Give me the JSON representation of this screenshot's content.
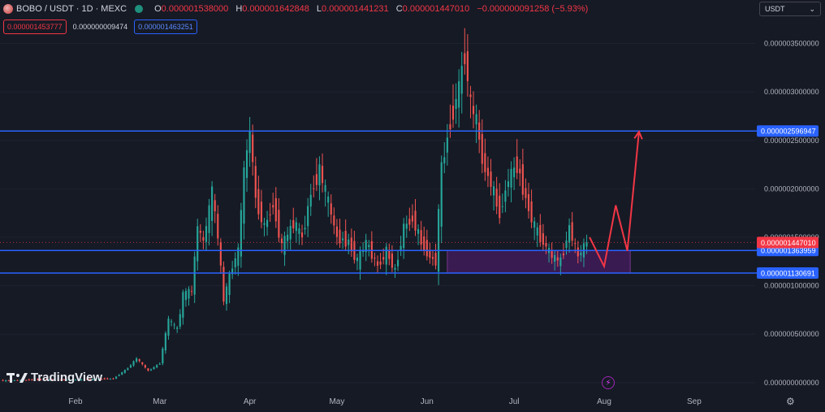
{
  "header": {
    "symbol": "BOBO / USDT · 1D · MEXC",
    "ohlc": [
      {
        "key": "O",
        "value": "0.000001538000"
      },
      {
        "key": "H",
        "value": "0.000001642848"
      },
      {
        "key": "L",
        "value": "0.000001441231"
      },
      {
        "key": "C",
        "value": "0.000001447010"
      },
      {
        "key": "",
        "value": "−0.000000091258 (−5.93%)"
      }
    ],
    "bid": "0.000001453777",
    "spread": "0.000000009474",
    "ask": "0.000001463251",
    "currency": "USDT"
  },
  "branding": {
    "logo_text": "TradingView",
    "logo_icon": "tradingview-logo-icon"
  },
  "colors": {
    "background": "#161a25",
    "up": "#26a69a",
    "down": "#ef5350",
    "level_line": "#2962ff",
    "price_label": "#f23645",
    "zone_fill": "#7b1fa2",
    "arrow": "#f23645"
  },
  "chart_data": {
    "type": "candlestick",
    "x_labels": [
      "Feb",
      "Mar",
      "Apr",
      "May",
      "Jun",
      "Jul",
      "Aug",
      "Sep"
    ],
    "y_ticks": [
      {
        "label": "0.000003500000",
        "value": 3.5
      },
      {
        "label": "0.000003000000",
        "value": 3.0
      },
      {
        "label": "0.000002500000",
        "value": 2.5
      },
      {
        "label": "0.000002000000",
        "value": 2.0
      },
      {
        "label": "0.000001500000",
        "value": 1.5
      },
      {
        "label": "0.000001000000",
        "value": 1.0
      },
      {
        "label": "0.000000500000",
        "value": 0.5
      },
      {
        "label": "0.000000000000",
        "value": 0.0
      }
    ],
    "y_unit_note": "values in units of 1e-6 USDT",
    "ylim": [
      -0.06,
      3.58
    ],
    "x_range": [
      "2024-01-06",
      "2024-09-22"
    ],
    "horizontal_levels": [
      {
        "label": "0.000002596947",
        "value": 2.596947,
        "color": "#2962ff"
      },
      {
        "label": "0.000001363959",
        "value": 1.363959,
        "color": "#2962ff"
      },
      {
        "label": "0.000001130691",
        "value": 1.130691,
        "color": "#2962ff"
      }
    ],
    "current_price": {
      "label": "0.000001447010",
      "value": 1.44701,
      "color": "#f23645"
    },
    "zone": {
      "from": "2024-06-08",
      "to": "2024-08-10",
      "low": 1.130691,
      "high": 1.363959
    },
    "projection_path": [
      {
        "date": "2024-07-27",
        "value": 1.5
      },
      {
        "date": "2024-08-01",
        "value": 1.2
      },
      {
        "date": "2024-08-05",
        "value": 1.83
      },
      {
        "date": "2024-08-09",
        "value": 1.36
      },
      {
        "date": "2024-08-13",
        "value": 2.59
      }
    ],
    "candles": [
      {
        "date": "2024-01-06",
        "close": 0.02
      },
      {
        "date": "2024-01-20",
        "close": 0.03
      },
      {
        "date": "2024-02-01",
        "close": 0.03
      },
      {
        "date": "2024-02-14",
        "close": 0.04
      },
      {
        "date": "2024-02-19",
        "close": 0.15
      },
      {
        "date": "2024-02-22",
        "close": 0.25
      },
      {
        "date": "2024-02-26",
        "close": 0.12
      },
      {
        "date": "2024-03-01",
        "close": 0.2
      },
      {
        "date": "2024-03-04",
        "close": 0.65
      },
      {
        "date": "2024-03-07",
        "close": 0.55
      },
      {
        "date": "2024-03-09",
        "close": 0.9
      },
      {
        "date": "2024-03-12",
        "close": 0.95
      },
      {
        "date": "2024-03-14",
        "close": 1.6
      },
      {
        "date": "2024-03-16",
        "close": 1.45
      },
      {
        "date": "2024-03-19",
        "close": 1.95
      },
      {
        "date": "2024-03-21",
        "close": 1.5
      },
      {
        "date": "2024-03-23",
        "close": 0.85
      },
      {
        "date": "2024-03-26",
        "close": 1.2
      },
      {
        "date": "2024-03-28",
        "close": 1.35
      },
      {
        "date": "2024-03-30",
        "close": 2.15
      },
      {
        "date": "2024-04-01",
        "close": 2.6
      },
      {
        "date": "2024-04-03",
        "close": 1.9
      },
      {
        "date": "2024-04-06",
        "close": 1.6
      },
      {
        "date": "2024-04-09",
        "close": 1.85
      },
      {
        "date": "2024-04-12",
        "close": 1.4
      },
      {
        "date": "2024-04-16",
        "close": 1.65
      },
      {
        "date": "2024-04-19",
        "close": 1.5
      },
      {
        "date": "2024-04-22",
        "close": 1.95
      },
      {
        "date": "2024-04-25",
        "close": 2.2
      },
      {
        "date": "2024-04-28",
        "close": 1.85
      },
      {
        "date": "2024-05-01",
        "close": 1.5
      },
      {
        "date": "2024-05-05",
        "close": 1.45
      },
      {
        "date": "2024-05-08",
        "close": 1.25
      },
      {
        "date": "2024-05-11",
        "close": 1.45
      },
      {
        "date": "2024-05-15",
        "close": 1.2
      },
      {
        "date": "2024-05-18",
        "close": 1.35
      },
      {
        "date": "2024-05-21",
        "close": 1.15
      },
      {
        "date": "2024-05-24",
        "close": 1.6
      },
      {
        "date": "2024-05-27",
        "close": 1.7
      },
      {
        "date": "2024-05-30",
        "close": 1.45
      },
      {
        "date": "2024-06-02",
        "close": 1.3
      },
      {
        "date": "2024-06-04",
        "close": 1.25
      },
      {
        "date": "2024-06-06",
        "close": 2.2
      },
      {
        "date": "2024-06-09",
        "close": 2.7
      },
      {
        "date": "2024-06-12",
        "close": 3.05
      },
      {
        "date": "2024-06-14",
        "close": 3.4
      },
      {
        "date": "2024-06-16",
        "close": 2.85
      },
      {
        "date": "2024-06-18",
        "close": 2.7
      },
      {
        "date": "2024-06-20",
        "close": 2.3
      },
      {
        "date": "2024-06-23",
        "close": 2.05
      },
      {
        "date": "2024-06-26",
        "close": 1.75
      },
      {
        "date": "2024-06-29",
        "close": 2.1
      },
      {
        "date": "2024-07-02",
        "close": 2.25
      },
      {
        "date": "2024-07-05",
        "close": 1.9
      },
      {
        "date": "2024-07-08",
        "close": 1.6
      },
      {
        "date": "2024-07-11",
        "close": 1.45
      },
      {
        "date": "2024-07-14",
        "close": 1.3
      },
      {
        "date": "2024-07-17",
        "close": 1.25
      },
      {
        "date": "2024-07-20",
        "close": 1.6
      },
      {
        "date": "2024-07-23",
        "close": 1.3
      },
      {
        "date": "2024-07-26",
        "close": 1.45
      }
    ]
  }
}
